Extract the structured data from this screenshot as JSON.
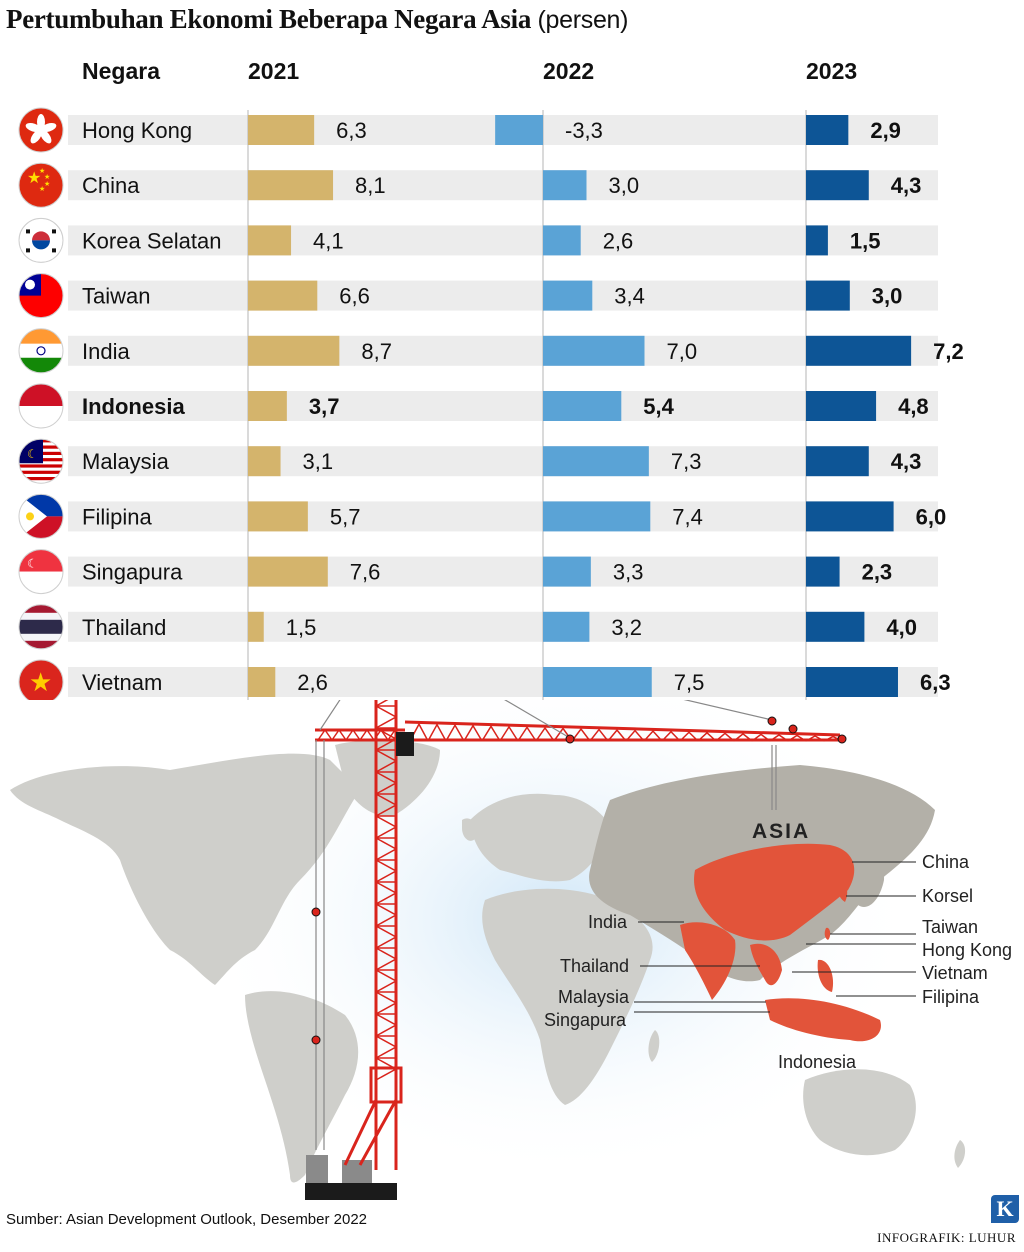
{
  "title": "Pertumbuhan Ekonomi Beberapa Negara Asia",
  "title_unit": "(persen)",
  "headers": {
    "country": "Negara",
    "y2021": "2021",
    "y2022": "2022",
    "y2023": "2023"
  },
  "chart_data": {
    "type": "bar",
    "title": "Pertumbuhan Ekonomi Beberapa Negara Asia (persen)",
    "categories": [
      "Hong Kong",
      "China",
      "Korea Selatan",
      "Taiwan",
      "India",
      "Indonesia",
      "Malaysia",
      "Filipina",
      "Singapura",
      "Thailand",
      "Vietnam"
    ],
    "series": [
      {
        "name": "2021",
        "values": [
          6.3,
          8.1,
          4.1,
          6.6,
          8.7,
          3.7,
          3.1,
          5.7,
          7.6,
          1.5,
          2.6
        ],
        "labels": [
          "6,3",
          "8,1",
          "4,1",
          "6,6",
          "8,7",
          "3,7",
          "3,1",
          "5,7",
          "7,6",
          "1,5",
          "2,6"
        ]
      },
      {
        "name": "2022",
        "values": [
          -3.3,
          3.0,
          2.6,
          3.4,
          7.0,
          5.4,
          7.3,
          7.4,
          3.3,
          3.2,
          7.5
        ],
        "labels": [
          "-3,3",
          "3,0",
          "2,6",
          "3,4",
          "7,0",
          "5,4",
          "7,3",
          "7,4",
          "3,3",
          "3,2",
          "7,5"
        ]
      },
      {
        "name": "2023",
        "values": [
          2.9,
          4.3,
          1.5,
          3.0,
          7.2,
          4.8,
          4.3,
          6.0,
          2.3,
          4.0,
          6.3
        ],
        "labels": [
          "2,9",
          "4,3",
          "1,5",
          "3,0",
          "7,2",
          "4,8",
          "4,3",
          "6,0",
          "2,3",
          "4,0",
          "6,3"
        ]
      }
    ],
    "highlight_category": "Indonesia",
    "colors": {
      "2021": "#d4b46c",
      "2022": "#5aa3d6",
      "2023": "#0d5596",
      "row_band": "#ececec"
    }
  },
  "flags": [
    "hong-kong",
    "china",
    "south-korea",
    "taiwan",
    "india",
    "indonesia",
    "malaysia",
    "philippines",
    "singapore",
    "thailand",
    "vietnam"
  ],
  "map": {
    "region_label": "ASIA",
    "labels": [
      "China",
      "Korsel",
      "Taiwan",
      "Hong Kong",
      "Vietnam",
      "Filipina",
      "India",
      "Thailand",
      "Malaysia",
      "Singapura",
      "Indonesia"
    ],
    "colors": {
      "land": "#cfcfcb",
      "asia": "#b3b0a8",
      "highlight": "#e2543a",
      "crane": "#d9241c"
    }
  },
  "source": "Sumber: Asian Development Outlook, Desember 2022",
  "credit": "INFOGRAFIK: LUHUR",
  "logo": "K"
}
